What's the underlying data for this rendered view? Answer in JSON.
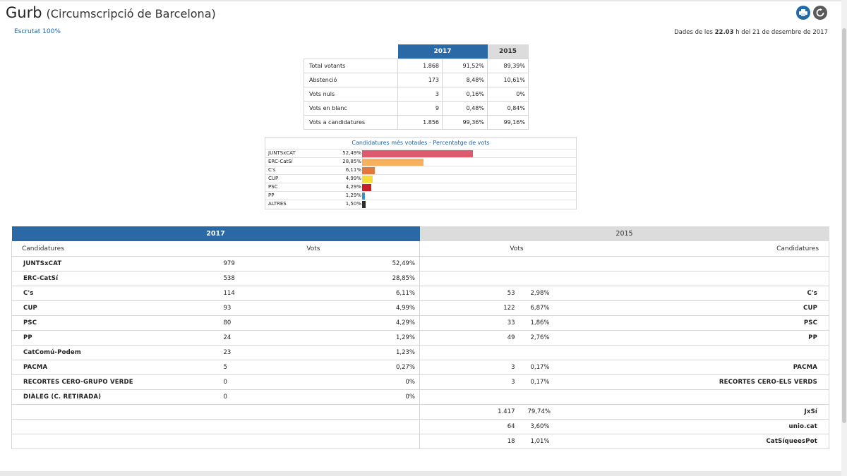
{
  "header": {
    "place": "Gurb",
    "circumscription": "(Circumscripció de Barcelona)",
    "escrutat": "Escrutat 100%",
    "dades_prefix": "Dades de les ",
    "dades_hour": "22.03",
    "dades_suffix": " h del 21 de desembre de 2017"
  },
  "icons": [
    "print-icon",
    "refresh-icon"
  ],
  "colors": {
    "accent_blue": "#2b68a6",
    "header_grey": "#dcdcdc"
  },
  "summary": {
    "year_2017": "2017",
    "year_2015": "2015",
    "rows": [
      {
        "label": "Total votants",
        "votes2017": "1.868",
        "pct2017": "91,52%",
        "pct2015": "89,39%"
      },
      {
        "label": "Abstenció",
        "votes2017": "173",
        "pct2017": "8,48%",
        "pct2015": "10,61%"
      },
      {
        "label": "Vots nuls",
        "votes2017": "3",
        "pct2017": "0,16%",
        "pct2015": "0%"
      },
      {
        "label": "Vots en blanc",
        "votes2017": "9",
        "pct2017": "0,48%",
        "pct2015": "0,84%"
      },
      {
        "label": "Vots a candidatures",
        "votes2017": "1.856",
        "pct2017": "99,36%",
        "pct2015": "99,16%"
      }
    ]
  },
  "chart_data": {
    "type": "bar",
    "title": "Candidatures més votades - Percentatge de vots",
    "categories": [
      "JUNTSxCAT",
      "ERC-CatSí",
      "C's",
      "CUP",
      "PSC",
      "PP",
      "ALTRES"
    ],
    "values": [
      52.49,
      28.85,
      6.11,
      4.99,
      4.29,
      1.29,
      1.5
    ],
    "value_labels": [
      "52,49%",
      "28,85%",
      "6,11%",
      "4,99%",
      "4,29%",
      "1,29%",
      "1,50%"
    ],
    "colors": [
      "#e05a6e",
      "#f6b05e",
      "#e2783d",
      "#f5df35",
      "#c8202a",
      "#3a8fc4",
      "#2d2d2d"
    ],
    "xlim": [
      0,
      100
    ]
  },
  "results": {
    "year_2017": "2017",
    "year_2015": "2015",
    "col_candidatures": "Candidatures",
    "col_vots": "Vots",
    "rows": [
      {
        "left": {
          "name": "JUNTSxCAT",
          "votes": "979",
          "pct": "52,49%"
        },
        "right": {
          "name": "",
          "votes": "",
          "pct": ""
        }
      },
      {
        "left": {
          "name": "ERC-CatSí",
          "votes": "538",
          "pct": "28,85%"
        },
        "right": {
          "name": "",
          "votes": "",
          "pct": ""
        }
      },
      {
        "left": {
          "name": "C's",
          "votes": "114",
          "pct": "6,11%"
        },
        "right": {
          "name": "C's",
          "votes": "53",
          "pct": "2,98%"
        }
      },
      {
        "left": {
          "name": "CUP",
          "votes": "93",
          "pct": "4,99%"
        },
        "right": {
          "name": "CUP",
          "votes": "122",
          "pct": "6,87%"
        }
      },
      {
        "left": {
          "name": "PSC",
          "votes": "80",
          "pct": "4,29%"
        },
        "right": {
          "name": "PSC",
          "votes": "33",
          "pct": "1,86%"
        }
      },
      {
        "left": {
          "name": "PP",
          "votes": "24",
          "pct": "1,29%"
        },
        "right": {
          "name": "PP",
          "votes": "49",
          "pct": "2,76%"
        }
      },
      {
        "left": {
          "name": "CatComú-Podem",
          "votes": "23",
          "pct": "1,23%"
        },
        "right": {
          "name": "",
          "votes": "",
          "pct": ""
        }
      },
      {
        "left": {
          "name": "PACMA",
          "votes": "5",
          "pct": "0,27%"
        },
        "right": {
          "name": "PACMA",
          "votes": "3",
          "pct": "0,17%"
        }
      },
      {
        "left": {
          "name": "RECORTES CERO-GRUPO VERDE",
          "votes": "0",
          "pct": "0%"
        },
        "right": {
          "name": "RECORTES CERO-ELS VERDS",
          "votes": "3",
          "pct": "0,17%"
        }
      },
      {
        "left": {
          "name": "DIÀLEG (C. RETIRADA)",
          "votes": "0",
          "pct": "0%"
        },
        "right": {
          "name": "",
          "votes": "",
          "pct": ""
        }
      },
      {
        "left": {
          "name": "",
          "votes": "",
          "pct": ""
        },
        "right": {
          "name": "JxSí",
          "votes": "1.417",
          "pct": "79,74%"
        }
      },
      {
        "left": {
          "name": "",
          "votes": "",
          "pct": ""
        },
        "right": {
          "name": "unio.cat",
          "votes": "64",
          "pct": "3,60%"
        }
      },
      {
        "left": {
          "name": "",
          "votes": "",
          "pct": ""
        },
        "right": {
          "name": "CatSíqueesPot",
          "votes": "18",
          "pct": "1,01%"
        }
      }
    ]
  }
}
